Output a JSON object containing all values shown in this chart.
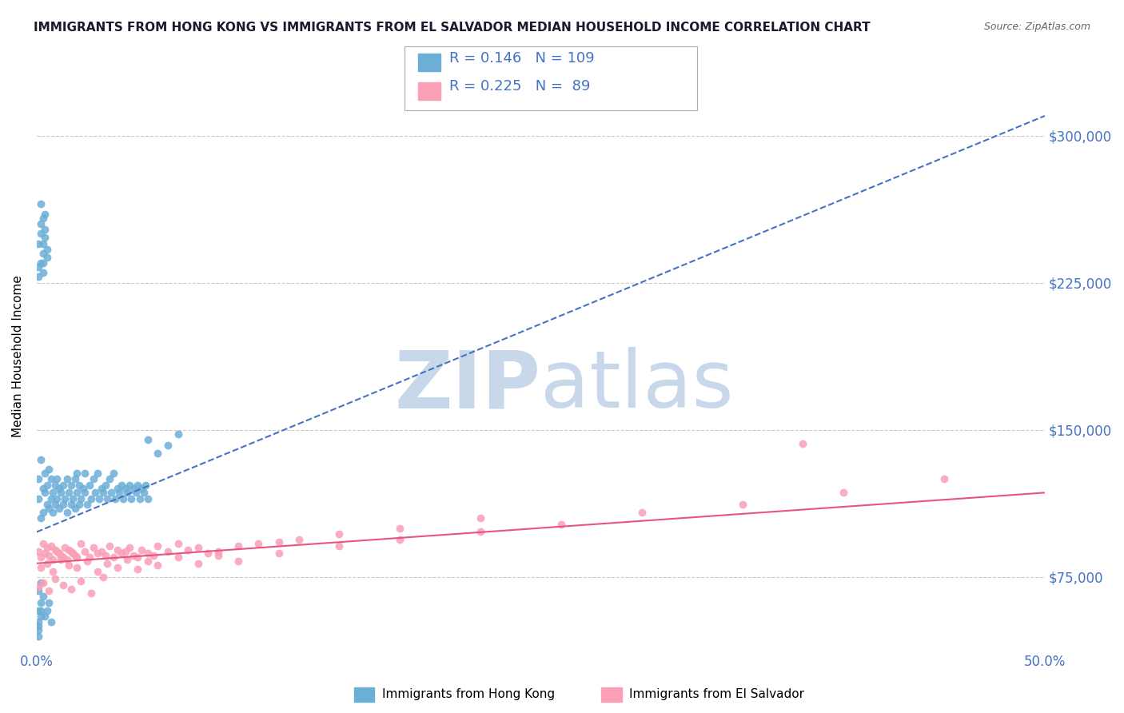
{
  "title": "IMMIGRANTS FROM HONG KONG VS IMMIGRANTS FROM EL SALVADOR MEDIAN HOUSEHOLD INCOME CORRELATION CHART",
  "source": "Source: ZipAtlas.com",
  "ylabel": "Median Household Income",
  "xlim": [
    0.0,
    0.5
  ],
  "ylim": [
    37500,
    337500
  ],
  "yticks": [
    75000,
    150000,
    225000,
    300000
  ],
  "ytick_labels": [
    "$75,000",
    "$150,000",
    "$225,000",
    "$300,000"
  ],
  "xticks": [
    0.0,
    0.05,
    0.1,
    0.15,
    0.2,
    0.25,
    0.3,
    0.35,
    0.4,
    0.45,
    0.5
  ],
  "xtick_labels": [
    "0.0%",
    "",
    "",
    "",
    "",
    "",
    "",
    "",
    "",
    "",
    "50.0%"
  ],
  "hk_color": "#6baed6",
  "sv_color": "#fa9fb5",
  "hk_R": "0.146",
  "hk_N": "109",
  "sv_R": "0.225",
  "sv_N": "89",
  "axis_color": "#4472c4",
  "watermark_zip": "ZIP",
  "watermark_atlas": "atlas",
  "watermark_color_zip": "#c8d8ea",
  "watermark_color_atlas": "#c8d8ea",
  "hk_line_color": "#4472c4",
  "sv_line_color": "#e75480",
  "bg_color": "#ffffff",
  "grid_color": "#cccccc",
  "hk_scatter_x": [
    0.001,
    0.001,
    0.002,
    0.002,
    0.003,
    0.003,
    0.004,
    0.004,
    0.005,
    0.005,
    0.006,
    0.006,
    0.007,
    0.007,
    0.008,
    0.008,
    0.009,
    0.009,
    0.01,
    0.01,
    0.011,
    0.011,
    0.012,
    0.013,
    0.013,
    0.014,
    0.015,
    0.015,
    0.016,
    0.017,
    0.017,
    0.018,
    0.019,
    0.019,
    0.02,
    0.02,
    0.021,
    0.021,
    0.022,
    0.023,
    0.024,
    0.024,
    0.025,
    0.026,
    0.027,
    0.028,
    0.029,
    0.03,
    0.031,
    0.032,
    0.033,
    0.034,
    0.035,
    0.036,
    0.037,
    0.038,
    0.039,
    0.04,
    0.041,
    0.042,
    0.043,
    0.044,
    0.045,
    0.046,
    0.047,
    0.048,
    0.049,
    0.05,
    0.051,
    0.052,
    0.053,
    0.054,
    0.055,
    0.001,
    0.002,
    0.003,
    0.002,
    0.003,
    0.004,
    0.003,
    0.004,
    0.005,
    0.004,
    0.005,
    0.002,
    0.003,
    0.001,
    0.002,
    0.001,
    0.003,
    0.001,
    0.002,
    0.001,
    0.001,
    0.002,
    0.001,
    0.002,
    0.001,
    0.002,
    0.001,
    0.003,
    0.004,
    0.005,
    0.006,
    0.007,
    0.055,
    0.06,
    0.065,
    0.07
  ],
  "hk_scatter_y": [
    115000,
    125000,
    105000,
    135000,
    120000,
    108000,
    118000,
    128000,
    112000,
    122000,
    110000,
    130000,
    115000,
    125000,
    108000,
    118000,
    112000,
    122000,
    115000,
    125000,
    110000,
    120000,
    118000,
    112000,
    122000,
    115000,
    125000,
    108000,
    118000,
    112000,
    122000,
    115000,
    125000,
    110000,
    118000,
    128000,
    112000,
    122000,
    115000,
    120000,
    118000,
    128000,
    112000,
    122000,
    115000,
    125000,
    118000,
    128000,
    115000,
    120000,
    118000,
    122000,
    115000,
    125000,
    118000,
    128000,
    115000,
    120000,
    118000,
    122000,
    115000,
    120000,
    118000,
    122000,
    115000,
    120000,
    118000,
    122000,
    115000,
    120000,
    118000,
    122000,
    115000,
    245000,
    250000,
    240000,
    255000,
    235000,
    260000,
    230000,
    248000,
    238000,
    252000,
    242000,
    265000,
    258000,
    228000,
    235000,
    233000,
    245000,
    68000,
    72000,
    58000,
    52000,
    62000,
    48000,
    55000,
    45000,
    58000,
    50000,
    65000,
    55000,
    58000,
    62000,
    52000,
    145000,
    138000,
    142000,
    148000
  ],
  "sv_scatter_x": [
    0.001,
    0.002,
    0.003,
    0.004,
    0.005,
    0.006,
    0.007,
    0.008,
    0.009,
    0.01,
    0.011,
    0.012,
    0.013,
    0.014,
    0.015,
    0.016,
    0.017,
    0.018,
    0.019,
    0.02,
    0.022,
    0.024,
    0.026,
    0.028,
    0.03,
    0.032,
    0.034,
    0.036,
    0.038,
    0.04,
    0.042,
    0.044,
    0.046,
    0.048,
    0.05,
    0.052,
    0.055,
    0.058,
    0.06,
    0.065,
    0.07,
    0.075,
    0.08,
    0.085,
    0.09,
    0.1,
    0.11,
    0.12,
    0.13,
    0.15,
    0.18,
    0.22,
    0.002,
    0.005,
    0.008,
    0.012,
    0.016,
    0.02,
    0.025,
    0.03,
    0.035,
    0.04,
    0.045,
    0.05,
    0.055,
    0.06,
    0.07,
    0.08,
    0.09,
    0.1,
    0.12,
    0.15,
    0.18,
    0.22,
    0.26,
    0.3,
    0.35,
    0.4,
    0.45,
    0.001,
    0.003,
    0.006,
    0.009,
    0.013,
    0.017,
    0.022,
    0.027,
    0.033,
    0.38
  ],
  "sv_scatter_y": [
    88000,
    85000,
    92000,
    87000,
    90000,
    86000,
    91000,
    84000,
    89000,
    88000,
    87000,
    86000,
    85000,
    90000,
    84000,
    89000,
    88000,
    87000,
    86000,
    85000,
    92000,
    88000,
    85000,
    90000,
    87000,
    88000,
    86000,
    91000,
    85000,
    89000,
    87000,
    88000,
    90000,
    86000,
    85000,
    89000,
    87000,
    86000,
    91000,
    88000,
    92000,
    89000,
    90000,
    87000,
    88000,
    91000,
    92000,
    93000,
    94000,
    97000,
    100000,
    105000,
    80000,
    82000,
    78000,
    84000,
    81000,
    80000,
    83000,
    78000,
    82000,
    80000,
    84000,
    79000,
    83000,
    81000,
    85000,
    82000,
    86000,
    83000,
    87000,
    91000,
    94000,
    98000,
    102000,
    108000,
    112000,
    118000,
    125000,
    70000,
    72000,
    68000,
    74000,
    71000,
    69000,
    73000,
    67000,
    75000,
    143000
  ],
  "hk_trend_x0": 0.0,
  "hk_trend_x1": 0.5,
  "hk_trend_y0": 98000,
  "hk_trend_y1": 310000,
  "sv_trend_x0": 0.0,
  "sv_trend_x1": 0.5,
  "sv_trend_y0": 82000,
  "sv_trend_y1": 118000,
  "legend_hk_label": "Immigrants from Hong Kong",
  "legend_sv_label": "Immigrants from El Salvador"
}
